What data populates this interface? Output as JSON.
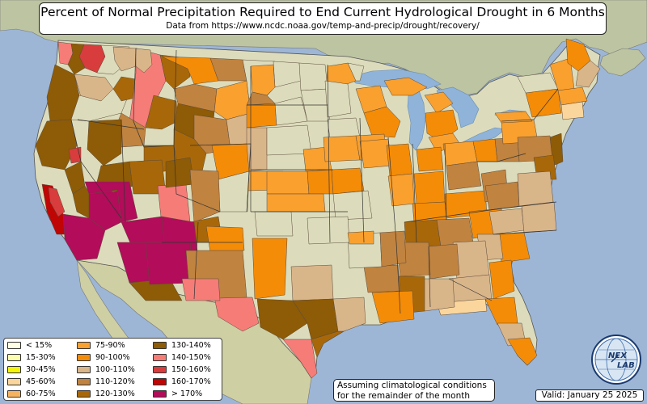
{
  "title": "Percent of Normal Precipitation Required to End Current Hydrological Drought in 6 Months",
  "subtitle": "Data from https://www.ncdc.noaa.gov/temp-and-precip/drought/recovery/",
  "note": [
    "Assuming climatological conditions",
    "for the remainder of the month"
  ],
  "valid": "Valid: January 25 2025",
  "logo": {
    "name": "nexlab-globe-icon",
    "text": [
      "NEX",
      "LAB"
    ]
  },
  "legend": [
    {
      "label": "< 15%",
      "color": "#fefee6"
    },
    {
      "label": "15-30%",
      "color": "#fdfdb0"
    },
    {
      "label": "30-45%",
      "color": "#f5f50c"
    },
    {
      "label": "45-60%",
      "color": "#fbd69c"
    },
    {
      "label": "60-75%",
      "color": "#f6b35f"
    },
    {
      "label": "75-90%",
      "color": "#f9a02f"
    },
    {
      "label": "90-100%",
      "color": "#f48c08"
    },
    {
      "label": "100-110%",
      "color": "#d9b58a"
    },
    {
      "label": "110-120%",
      "color": "#c08340"
    },
    {
      "label": "120-130%",
      "color": "#a86809"
    },
    {
      "label": "130-140%",
      "color": "#8e5b06"
    },
    {
      "label": "140-150%",
      "color": "#f67c78"
    },
    {
      "label": "150-160%",
      "color": "#d83c3c"
    },
    {
      "label": "160-170%",
      "color": "#c00505"
    },
    {
      "label": "> 170%",
      "color": "#b20c5a"
    }
  ],
  "colors": {
    "ocean": "#9db6d6",
    "land_us": "#dcdcbc",
    "land_canada": "#bcc4a2",
    "land_mexico": "#cfcfa4",
    "lake": "#8fb3d9"
  }
}
